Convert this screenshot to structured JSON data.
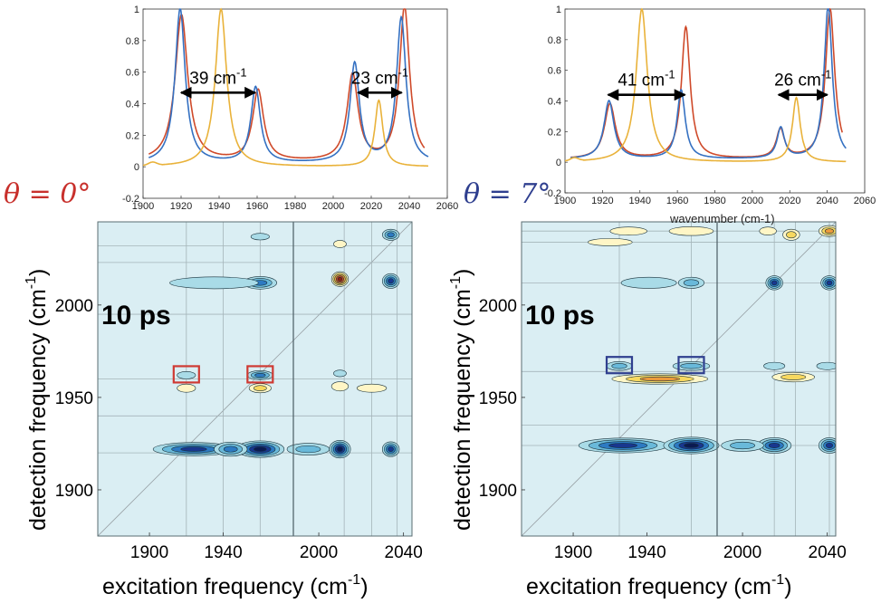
{
  "colors": {
    "red": "#cf4a2a",
    "blue": "#3571c2",
    "yellow": "#e9b23a",
    "map_bg": "#daeef3",
    "theta_left": "#c8302c",
    "theta_right": "#2f3f8f"
  },
  "labels": {
    "theta_left": "θ = 0°",
    "theta_right": "θ = 7°",
    "ps_label": "10 ps",
    "xlabel_main": "excitation frequency (cm",
    "ylabel_main": "detection frequency (cm",
    "unit_sup": "-1",
    "unit_close": ")",
    "hidden_xlabel_right": "wavenumber (cm-1)"
  },
  "chart_data": [
    {
      "type": "line",
      "panel": "top-left",
      "xlim": [
        1900,
        2060
      ],
      "ylim": [
        -0.2,
        1
      ],
      "xticks": [
        1900,
        1920,
        1940,
        1960,
        1980,
        2000,
        2020,
        2040,
        2060
      ],
      "yticks": [
        -0.2,
        0,
        0.2,
        0.4,
        0.6,
        0.8,
        1
      ],
      "ytick_labels": [
        "-0.2",
        "0",
        "0.2",
        "0.4",
        "0.6",
        "0.8",
        "1"
      ],
      "grid": false,
      "series": [
        {
          "color": "red",
          "peaks": [
            [
              1920.2,
              0.93,
              4.0
            ],
            [
              1960.5,
              0.45,
              3.5
            ],
            [
              2010.2,
              0.55,
              3.5
            ],
            [
              2037.5,
              0.98,
              3.2
            ]
          ],
          "baseline": 0.03,
          "x": [
            1903,
            2048
          ]
        },
        {
          "color": "blue",
          "peaks": [
            [
              1919.5,
              0.98,
              3.2
            ],
            [
              1959.2,
              0.48,
              3.0
            ],
            [
              2011.3,
              0.63,
              3.0
            ],
            [
              2035.8,
              0.92,
              3.0
            ]
          ],
          "baseline": 0.02,
          "x": [
            1903,
            2050
          ]
        },
        {
          "color": "yellow",
          "peaks": [
            [
              1941.0,
              1.0,
              3.6
            ],
            [
              2024.0,
              0.42,
              2.5
            ]
          ],
          "baseline": 0.0,
          "x": [
            1900,
            2050
          ]
        }
      ],
      "annotations": [
        {
          "text": "39 cm",
          "sup": "-1",
          "from": 1920,
          "to": 1959,
          "y": 0.47
        },
        {
          "text": "23 cm",
          "sup": "-1",
          "from": 2013,
          "to": 2036,
          "y": 0.47
        }
      ]
    },
    {
      "type": "line",
      "panel": "top-right",
      "xlim": [
        1900,
        2060
      ],
      "ylim": [
        -0.2,
        1
      ],
      "xticks": [
        1900,
        1920,
        1940,
        1960,
        1980,
        2000,
        2020,
        2040,
        2060
      ],
      "yticks": [
        -0.2,
        0,
        0.2,
        0.4,
        0.6,
        0.8,
        1
      ],
      "ytick_labels": [
        "-0.2",
        "0",
        "0.2",
        "0.4",
        "0.6",
        "0.8",
        "1"
      ],
      "grid": false,
      "series": [
        {
          "color": "red",
          "peaks": [
            [
              1924.0,
              0.36,
              3.5
            ],
            [
              1964.5,
              0.86,
              2.8
            ],
            [
              2015.0,
              0.19,
              2.6
            ],
            [
              2041.5,
              0.98,
              3.0
            ]
          ],
          "baseline": 0.02,
          "x": [
            1903,
            2048
          ]
        },
        {
          "color": "blue",
          "peaks": [
            [
              1923.5,
              0.38,
              3.2
            ],
            [
              1962.0,
              0.45,
              2.6
            ],
            [
              2015.2,
              0.2,
              2.4
            ],
            [
              2040.5,
              1.0,
              2.6
            ]
          ],
          "baseline": 0.02,
          "x": [
            1903,
            2050
          ]
        },
        {
          "color": "yellow",
          "peaks": [
            [
              1941.0,
              1.0,
              3.6
            ],
            [
              2023.5,
              0.42,
              2.5
            ]
          ],
          "baseline": 0.0,
          "x": [
            1900,
            2050
          ]
        }
      ],
      "annotations": [
        {
          "text": "41 cm",
          "sup": "-1",
          "from": 1923,
          "to": 1964,
          "y": 0.44
        },
        {
          "text": "26 cm",
          "sup": "-1",
          "from": 2014,
          "to": 2040,
          "y": 0.44
        }
      ]
    },
    {
      "type": "heatmap",
      "panel": "bottom-left",
      "title": "10 ps",
      "xlabel": "excitation frequency (cm-1)",
      "ylabel": "detection frequency (cm-1)",
      "xticks": [
        1900,
        1940,
        2000,
        2040
      ],
      "yticks": [
        1900,
        1950,
        2000
      ],
      "ylim": [
        1875,
        2045
      ],
      "grid_x": [
        1920,
        1940,
        1960,
        2012,
        2025,
        2037
      ],
      "grid_y": [
        1920,
        1940,
        1960,
        1995,
        2023,
        2032
      ],
      "boxes": [
        [
          1920,
          1962
        ],
        [
          1960,
          1962
        ]
      ],
      "features": [
        {
          "x": 1924,
          "y": 1922,
          "w": 22,
          "h": 3.6,
          "kind": "neg",
          "levels": 4
        },
        {
          "x": 1960,
          "y": 1922,
          "w": 13,
          "h": 4.5,
          "kind": "neg",
          "levels": 5
        },
        {
          "x": 1944,
          "y": 1922,
          "w": 9,
          "h": 3.8,
          "kind": "neg",
          "levels": 3
        },
        {
          "x": 1960,
          "y": 2012,
          "w": 9,
          "h": 3.4,
          "kind": "neg",
          "levels": 3
        },
        {
          "x": 1935,
          "y": 2012,
          "w": 24,
          "h": 3.2,
          "kind": "neg",
          "levels": 1
        },
        {
          "x": 1960,
          "y": 1962,
          "w": 7,
          "h": 2.5,
          "kind": "neg",
          "levels": 3
        },
        {
          "x": 1920,
          "y": 1962,
          "w": 5,
          "h": 2.0,
          "kind": "neg",
          "levels": 1
        },
        {
          "x": 1960,
          "y": 1955,
          "w": 6,
          "h": 2.5,
          "kind": "pos",
          "levels": 2
        },
        {
          "x": 1920,
          "y": 1955,
          "w": 5,
          "h": 2.2,
          "kind": "pos",
          "levels": 1
        },
        {
          "x": 1960,
          "y": 2037,
          "w": 5,
          "h": 1.8,
          "kind": "neg",
          "levels": 1
        },
        {
          "x": 2010,
          "y": 1922,
          "w": 5,
          "h": 4.8,
          "kind": "neg",
          "levels": 5
        },
        {
          "x": 1995,
          "y": 1922,
          "w": 10,
          "h": 3.2,
          "kind": "neg",
          "levels": 2
        },
        {
          "x": 2034,
          "y": 1922,
          "w": 4,
          "h": 4.0,
          "kind": "neg",
          "levels": 4
        },
        {
          "x": 2010,
          "y": 2014,
          "w": 4,
          "h": 4.0,
          "kind": "pos",
          "levels": 5
        },
        {
          "x": 2034,
          "y": 2013,
          "w": 4,
          "h": 4.0,
          "kind": "neg",
          "levels": 4
        },
        {
          "x": 2010,
          "y": 1956,
          "w": 4,
          "h": 2.5,
          "kind": "pos",
          "levels": 1
        },
        {
          "x": 2025,
          "y": 1955,
          "w": 7,
          "h": 2.2,
          "kind": "pos",
          "levels": 1
        },
        {
          "x": 2010,
          "y": 1963,
          "w": 3,
          "h": 1.8,
          "kind": "neg",
          "levels": 1
        },
        {
          "x": 2034,
          "y": 2038,
          "w": 4,
          "h": 3.0,
          "kind": "neg",
          "levels": 3
        },
        {
          "x": 2010,
          "y": 2033,
          "w": 3,
          "h": 2.0,
          "kind": "pos",
          "levels": 1
        }
      ]
    },
    {
      "type": "heatmap",
      "panel": "bottom-right",
      "title": "10 ps",
      "xlabel": "excitation frequency (cm-1)",
      "ylabel": "detection frequency (cm-1)",
      "xticks": [
        1900,
        1940,
        2000,
        2040
      ],
      "yticks": [
        1900,
        1950,
        2000
      ],
      "ylim": [
        1875,
        2045
      ],
      "grid_x": [
        1925,
        1964,
        2015,
        2025,
        2041
      ],
      "grid_y": [
        1924,
        1935,
        1964,
        2012,
        2034,
        2040
      ],
      "boxes": [
        [
          1925,
          1967
        ],
        [
          1964,
          1967
        ]
      ],
      "features": [
        {
          "x": 1927,
          "y": 1924,
          "w": 24,
          "h": 4.0,
          "kind": "neg",
          "levels": 4
        },
        {
          "x": 1964,
          "y": 1924,
          "w": 15,
          "h": 4.5,
          "kind": "neg",
          "levels": 5
        },
        {
          "x": 1941,
          "y": 2012,
          "w": 15,
          "h": 3.0,
          "kind": "neg",
          "levels": 1
        },
        {
          "x": 1964,
          "y": 2012,
          "w": 7,
          "h": 3.0,
          "kind": "neg",
          "levels": 2
        },
        {
          "x": 1925,
          "y": 1967,
          "w": 7,
          "h": 2.4,
          "kind": "neg",
          "levels": 2
        },
        {
          "x": 1964,
          "y": 1967,
          "w": 10,
          "h": 2.4,
          "kind": "neg",
          "levels": 2
        },
        {
          "x": 1947,
          "y": 1960,
          "w": 26,
          "h": 2.8,
          "kind": "pos",
          "levels": 3
        },
        {
          "x": 1964,
          "y": 2040,
          "w": 12,
          "h": 2.4,
          "kind": "pos",
          "levels": 1
        },
        {
          "x": 1930,
          "y": 2040,
          "w": 10,
          "h": 2.2,
          "kind": "pos",
          "levels": 1
        },
        {
          "x": 1920,
          "y": 2034,
          "w": 12,
          "h": 2.0,
          "kind": "pos",
          "levels": 1
        },
        {
          "x": 2015,
          "y": 1924,
          "w": 8,
          "h": 4.2,
          "kind": "neg",
          "levels": 4
        },
        {
          "x": 2000,
          "y": 1924,
          "w": 10,
          "h": 3.2,
          "kind": "neg",
          "levels": 2
        },
        {
          "x": 2041,
          "y": 1924,
          "w": 5,
          "h": 4.2,
          "kind": "neg",
          "levels": 4
        },
        {
          "x": 2015,
          "y": 2012,
          "w": 4,
          "h": 3.8,
          "kind": "neg",
          "levels": 4
        },
        {
          "x": 2041,
          "y": 2012,
          "w": 4,
          "h": 3.8,
          "kind": "neg",
          "levels": 4
        },
        {
          "x": 2024,
          "y": 1961,
          "w": 10,
          "h": 2.6,
          "kind": "pos",
          "levels": 2
        },
        {
          "x": 2015,
          "y": 1967,
          "w": 5,
          "h": 2.0,
          "kind": "neg",
          "levels": 1
        },
        {
          "x": 2040,
          "y": 1967,
          "w": 5,
          "h": 2.0,
          "kind": "neg",
          "levels": 1
        },
        {
          "x": 2023,
          "y": 2038,
          "w": 4,
          "h": 3.0,
          "kind": "pos",
          "levels": 2
        },
        {
          "x": 2041,
          "y": 2040,
          "w": 5,
          "h": 3.0,
          "kind": "pos",
          "levels": 3
        },
        {
          "x": 2012,
          "y": 2040,
          "w": 4,
          "h": 2.2,
          "kind": "pos",
          "levels": 1
        }
      ]
    }
  ]
}
